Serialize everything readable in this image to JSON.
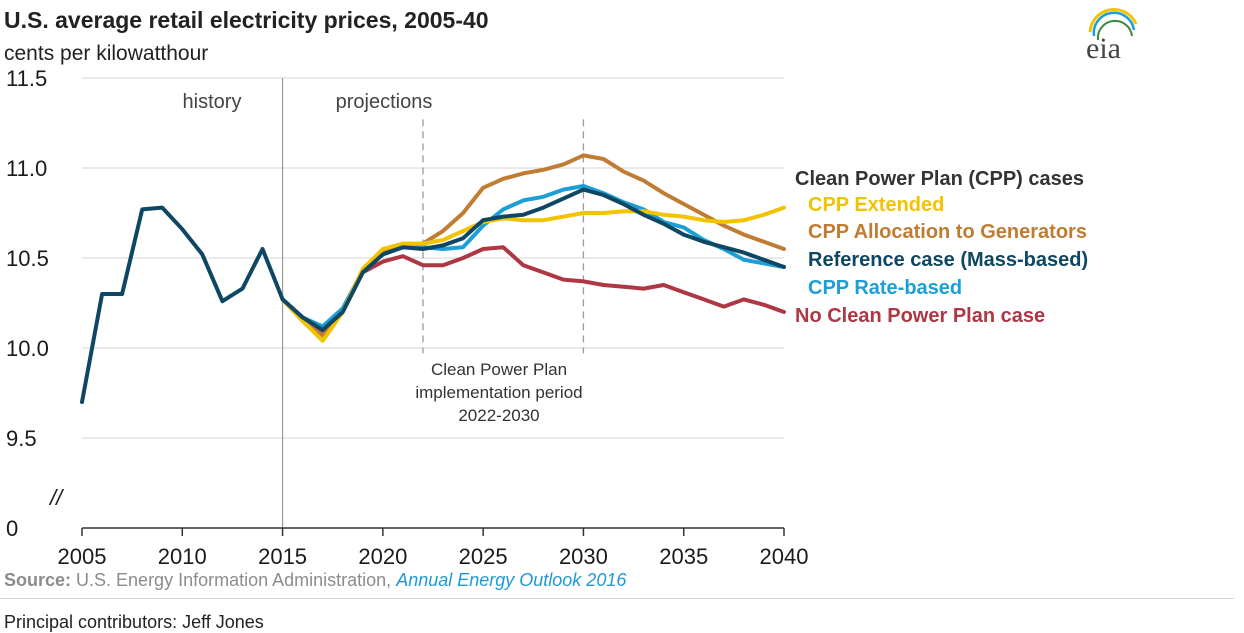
{
  "chart_data": {
    "type": "line",
    "title": "U.S. average retail electricity prices, 2005-40",
    "subtitle": "cents per kilowatthour",
    "ylim": [
      9.5,
      11.5
    ],
    "y_ticks": [
      "11.5",
      "11.0",
      "10.5",
      "10.0",
      "9.5"
    ],
    "y_zero_label": "0",
    "axis_break_glyph": "//",
    "xlim": [
      2005,
      2040
    ],
    "x_ticks": [
      "2005",
      "2010",
      "2015",
      "2020",
      "2025",
      "2030",
      "2035",
      "2040"
    ],
    "region_labels": {
      "history": "history",
      "projections": "projections"
    },
    "annotation": [
      "Clean Power Plan",
      "implementation period",
      "2022-2030"
    ],
    "legend_title": "Clean Power Plan (CPP) cases",
    "grid": true,
    "series": [
      {
        "name": "CPP Extended",
        "color": "#f2c300",
        "values": [
          [
            2015,
            10.27
          ],
          [
            2016,
            10.15
          ],
          [
            2017,
            10.04
          ],
          [
            2018,
            10.2
          ],
          [
            2019,
            10.44
          ],
          [
            2020,
            10.55
          ],
          [
            2021,
            10.58
          ],
          [
            2022,
            10.58
          ],
          [
            2023,
            10.6
          ],
          [
            2024,
            10.65
          ],
          [
            2025,
            10.7
          ],
          [
            2026,
            10.72
          ],
          [
            2027,
            10.71
          ],
          [
            2028,
            10.71
          ],
          [
            2029,
            10.73
          ],
          [
            2030,
            10.75
          ],
          [
            2031,
            10.75
          ],
          [
            2032,
            10.76
          ],
          [
            2033,
            10.76
          ],
          [
            2034,
            10.74
          ],
          [
            2035,
            10.73
          ],
          [
            2036,
            10.71
          ],
          [
            2037,
            10.7
          ],
          [
            2038,
            10.71
          ],
          [
            2039,
            10.74
          ],
          [
            2040,
            10.78
          ]
        ]
      },
      {
        "name": "CPP Allocation to Generators",
        "color": "#c07c32",
        "values": [
          [
            2015,
            10.27
          ],
          [
            2016,
            10.15
          ],
          [
            2017,
            10.07
          ],
          [
            2018,
            10.2
          ],
          [
            2019,
            10.43
          ],
          [
            2020,
            10.53
          ],
          [
            2021,
            10.57
          ],
          [
            2022,
            10.58
          ],
          [
            2023,
            10.65
          ],
          [
            2024,
            10.75
          ],
          [
            2025,
            10.89
          ],
          [
            2026,
            10.94
          ],
          [
            2027,
            10.97
          ],
          [
            2028,
            10.99
          ],
          [
            2029,
            11.02
          ],
          [
            2030,
            11.07
          ],
          [
            2031,
            11.05
          ],
          [
            2032,
            10.98
          ],
          [
            2033,
            10.93
          ],
          [
            2034,
            10.86
          ],
          [
            2035,
            10.8
          ],
          [
            2036,
            10.74
          ],
          [
            2037,
            10.68
          ],
          [
            2038,
            10.63
          ],
          [
            2039,
            10.59
          ],
          [
            2040,
            10.55
          ]
        ]
      },
      {
        "name": "Reference case (Mass-based)",
        "color": "#0e4763",
        "values": [
          [
            2015,
            10.27
          ],
          [
            2016,
            10.17
          ],
          [
            2017,
            10.1
          ],
          [
            2018,
            10.2
          ],
          [
            2019,
            10.42
          ],
          [
            2020,
            10.52
          ],
          [
            2021,
            10.56
          ],
          [
            2022,
            10.55
          ],
          [
            2023,
            10.57
          ],
          [
            2024,
            10.61
          ],
          [
            2025,
            10.71
          ],
          [
            2026,
            10.73
          ],
          [
            2027,
            10.74
          ],
          [
            2028,
            10.78
          ],
          [
            2029,
            10.83
          ],
          [
            2030,
            10.88
          ],
          [
            2031,
            10.85
          ],
          [
            2032,
            10.8
          ],
          [
            2033,
            10.74
          ],
          [
            2034,
            10.69
          ],
          [
            2035,
            10.63
          ],
          [
            2036,
            10.59
          ],
          [
            2037,
            10.56
          ],
          [
            2038,
            10.53
          ],
          [
            2039,
            10.49
          ],
          [
            2040,
            10.45
          ]
        ]
      },
      {
        "name": "CPP Rate-based",
        "color": "#1c9fd6",
        "values": [
          [
            2015,
            10.27
          ],
          [
            2016,
            10.17
          ],
          [
            2017,
            10.12
          ],
          [
            2018,
            10.22
          ],
          [
            2019,
            10.43
          ],
          [
            2020,
            10.52
          ],
          [
            2021,
            10.56
          ],
          [
            2022,
            10.56
          ],
          [
            2023,
            10.55
          ],
          [
            2024,
            10.56
          ],
          [
            2025,
            10.68
          ],
          [
            2026,
            10.77
          ],
          [
            2027,
            10.82
          ],
          [
            2028,
            10.84
          ],
          [
            2029,
            10.88
          ],
          [
            2030,
            10.9
          ],
          [
            2031,
            10.86
          ],
          [
            2032,
            10.81
          ],
          [
            2033,
            10.77
          ],
          [
            2034,
            10.7
          ],
          [
            2035,
            10.67
          ],
          [
            2036,
            10.6
          ],
          [
            2037,
            10.55
          ],
          [
            2038,
            10.49
          ],
          [
            2039,
            10.47
          ],
          [
            2040,
            10.45
          ]
        ]
      },
      {
        "name": "No Clean Power Plan case",
        "color": "#ad3844",
        "values": [
          [
            2015,
            10.27
          ],
          [
            2016,
            10.17
          ],
          [
            2017,
            10.08
          ],
          [
            2018,
            10.2
          ],
          [
            2019,
            10.42
          ],
          [
            2020,
            10.48
          ],
          [
            2021,
            10.51
          ],
          [
            2022,
            10.46
          ],
          [
            2023,
            10.46
          ],
          [
            2024,
            10.5
          ],
          [
            2025,
            10.55
          ],
          [
            2026,
            10.56
          ],
          [
            2027,
            10.46
          ],
          [
            2028,
            10.42
          ],
          [
            2029,
            10.38
          ],
          [
            2030,
            10.37
          ],
          [
            2031,
            10.35
          ],
          [
            2032,
            10.34
          ],
          [
            2033,
            10.33
          ],
          [
            2034,
            10.35
          ],
          [
            2035,
            10.31
          ],
          [
            2036,
            10.27
          ],
          [
            2037,
            10.23
          ],
          [
            2038,
            10.27
          ],
          [
            2039,
            10.24
          ],
          [
            2040,
            10.2
          ]
        ]
      },
      {
        "name": "history",
        "color": "#0e4763",
        "values": [
          [
            2005,
            9.7
          ],
          [
            2006,
            10.3
          ],
          [
            2007,
            10.3
          ],
          [
            2008,
            10.77
          ],
          [
            2009,
            10.78
          ],
          [
            2010,
            10.66
          ],
          [
            2011,
            10.52
          ],
          [
            2012,
            10.26
          ],
          [
            2013,
            10.33
          ],
          [
            2014,
            10.55
          ],
          [
            2015,
            10.27
          ]
        ]
      }
    ]
  },
  "source": {
    "label": "Source:",
    "text": " U.S. Energy Information Administration, ",
    "publication": "Annual Energy Outlook 2016"
  },
  "footer_partial": "Principal contributors: Jeff Jones"
}
